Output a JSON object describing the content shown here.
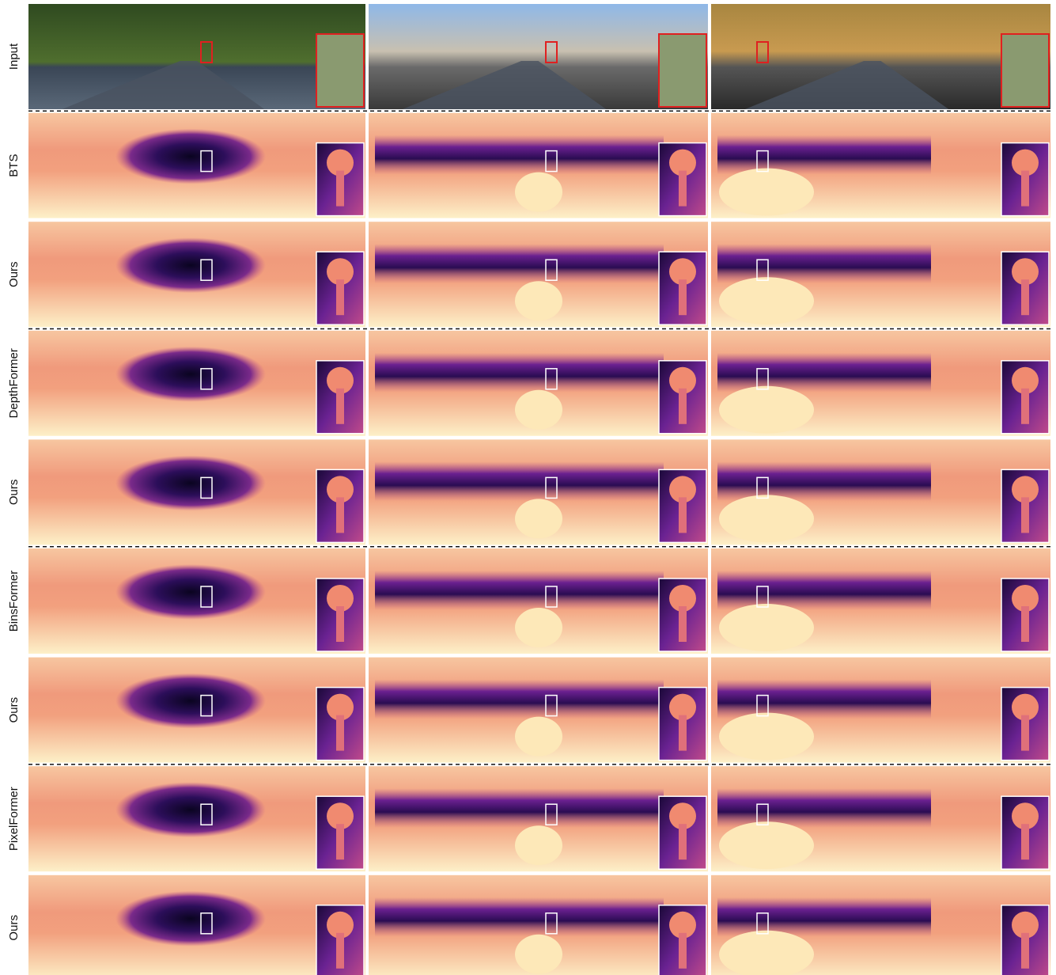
{
  "rows": [
    {
      "label": "Input"
    },
    {
      "label": "BTS"
    },
    {
      "label": "Ours"
    },
    {
      "label": "DepthFormer"
    },
    {
      "label": "Ours"
    },
    {
      "label": "BinsFormer"
    },
    {
      "label": "Ours"
    },
    {
      "label": "PixelFormer"
    },
    {
      "label": "Ours"
    }
  ]
}
